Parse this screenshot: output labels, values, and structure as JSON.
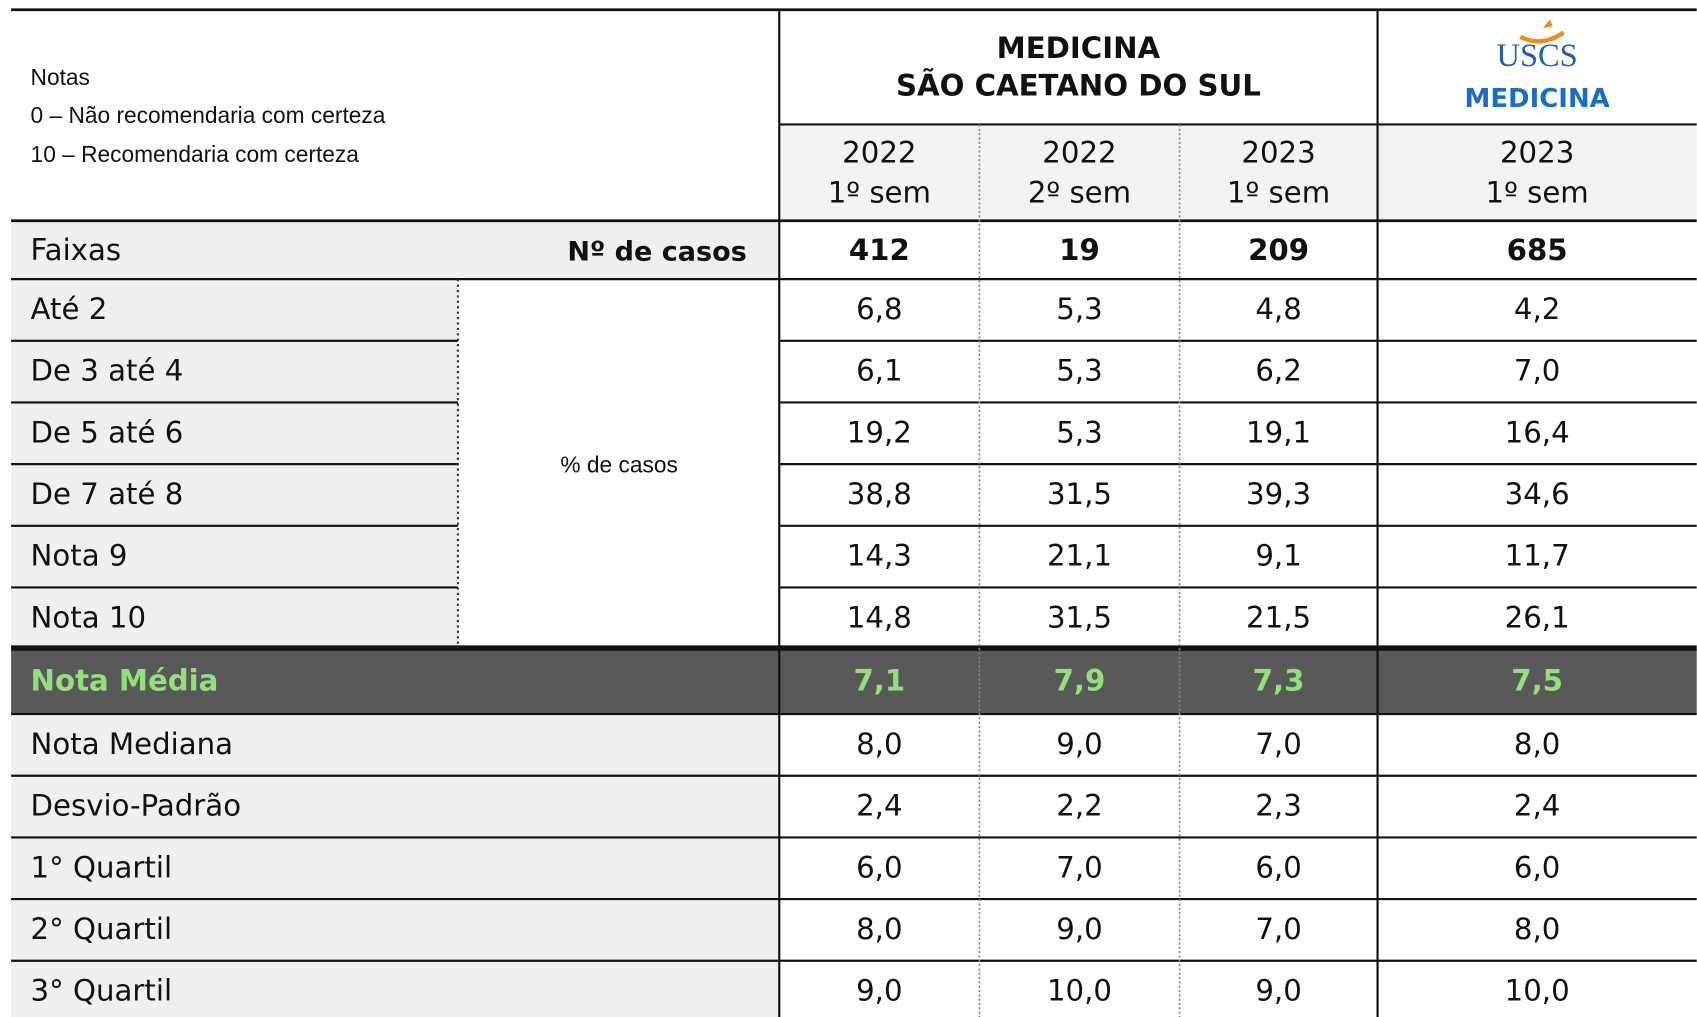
{
  "notes": {
    "title": "Notas",
    "lines": [
      "0 – Não recomendaria com certeza",
      "10 – Recomendaria com certeza"
    ]
  },
  "header": {
    "group": [
      "MEDICINA",
      "SÃO CAETANO DO SUL"
    ],
    "logo": "USCS",
    "logo_sub": "MEDICINA"
  },
  "columns": [
    {
      "year": "2022",
      "sem": "1º sem"
    },
    {
      "year": "2022",
      "sem": "2º sem"
    },
    {
      "year": "2023",
      "sem": "1º sem"
    },
    {
      "year": "2023",
      "sem": "1º sem"
    }
  ],
  "cases_row": {
    "label": "Faixas",
    "sublabel": "Nº de casos",
    "values": [
      "412",
      "19",
      "209",
      "685"
    ]
  },
  "pct_label": "% de casos",
  "bands": [
    {
      "label": "Até 2",
      "values": [
        "6,8",
        "5,3",
        "4,8",
        "4,2"
      ]
    },
    {
      "label": "De 3 até 4",
      "values": [
        "6,1",
        "5,3",
        "6,2",
        "7,0"
      ]
    },
    {
      "label": "De 5 até 6",
      "values": [
        "19,2",
        "5,3",
        "19,1",
        "16,4"
      ]
    },
    {
      "label": "De 7 até 8",
      "values": [
        "38,8",
        "31,5",
        "39,3",
        "34,6"
      ]
    },
    {
      "label": "Nota 9",
      "values": [
        "14,3",
        "21,1",
        "9,1",
        "11,7"
      ]
    },
    {
      "label": "Nota 10",
      "values": [
        "14,8",
        "31,5",
        "21,5",
        "26,1"
      ]
    }
  ],
  "mean_row": {
    "label": "Nota Média",
    "values": [
      "7,1",
      "7,9",
      "7,3",
      "7,5"
    ]
  },
  "stats": [
    {
      "label": "Nota Mediana",
      "values": [
        "8,0",
        "9,0",
        "7,0",
        "8,0"
      ]
    },
    {
      "label": "Desvio-Padrão",
      "values": [
        "2,4",
        "2,2",
        "2,3",
        "2,4"
      ]
    },
    {
      "label": "1° Quartil",
      "values": [
        "6,0",
        "7,0",
        "6,0",
        "6,0"
      ]
    },
    {
      "label": "2° Quartil",
      "values": [
        "8,0",
        "9,0",
        "7,0",
        "8,0"
      ]
    },
    {
      "label": "3° Quartil",
      "values": [
        "9,0",
        "10,0",
        "9,0",
        "10,0"
      ]
    }
  ]
}
